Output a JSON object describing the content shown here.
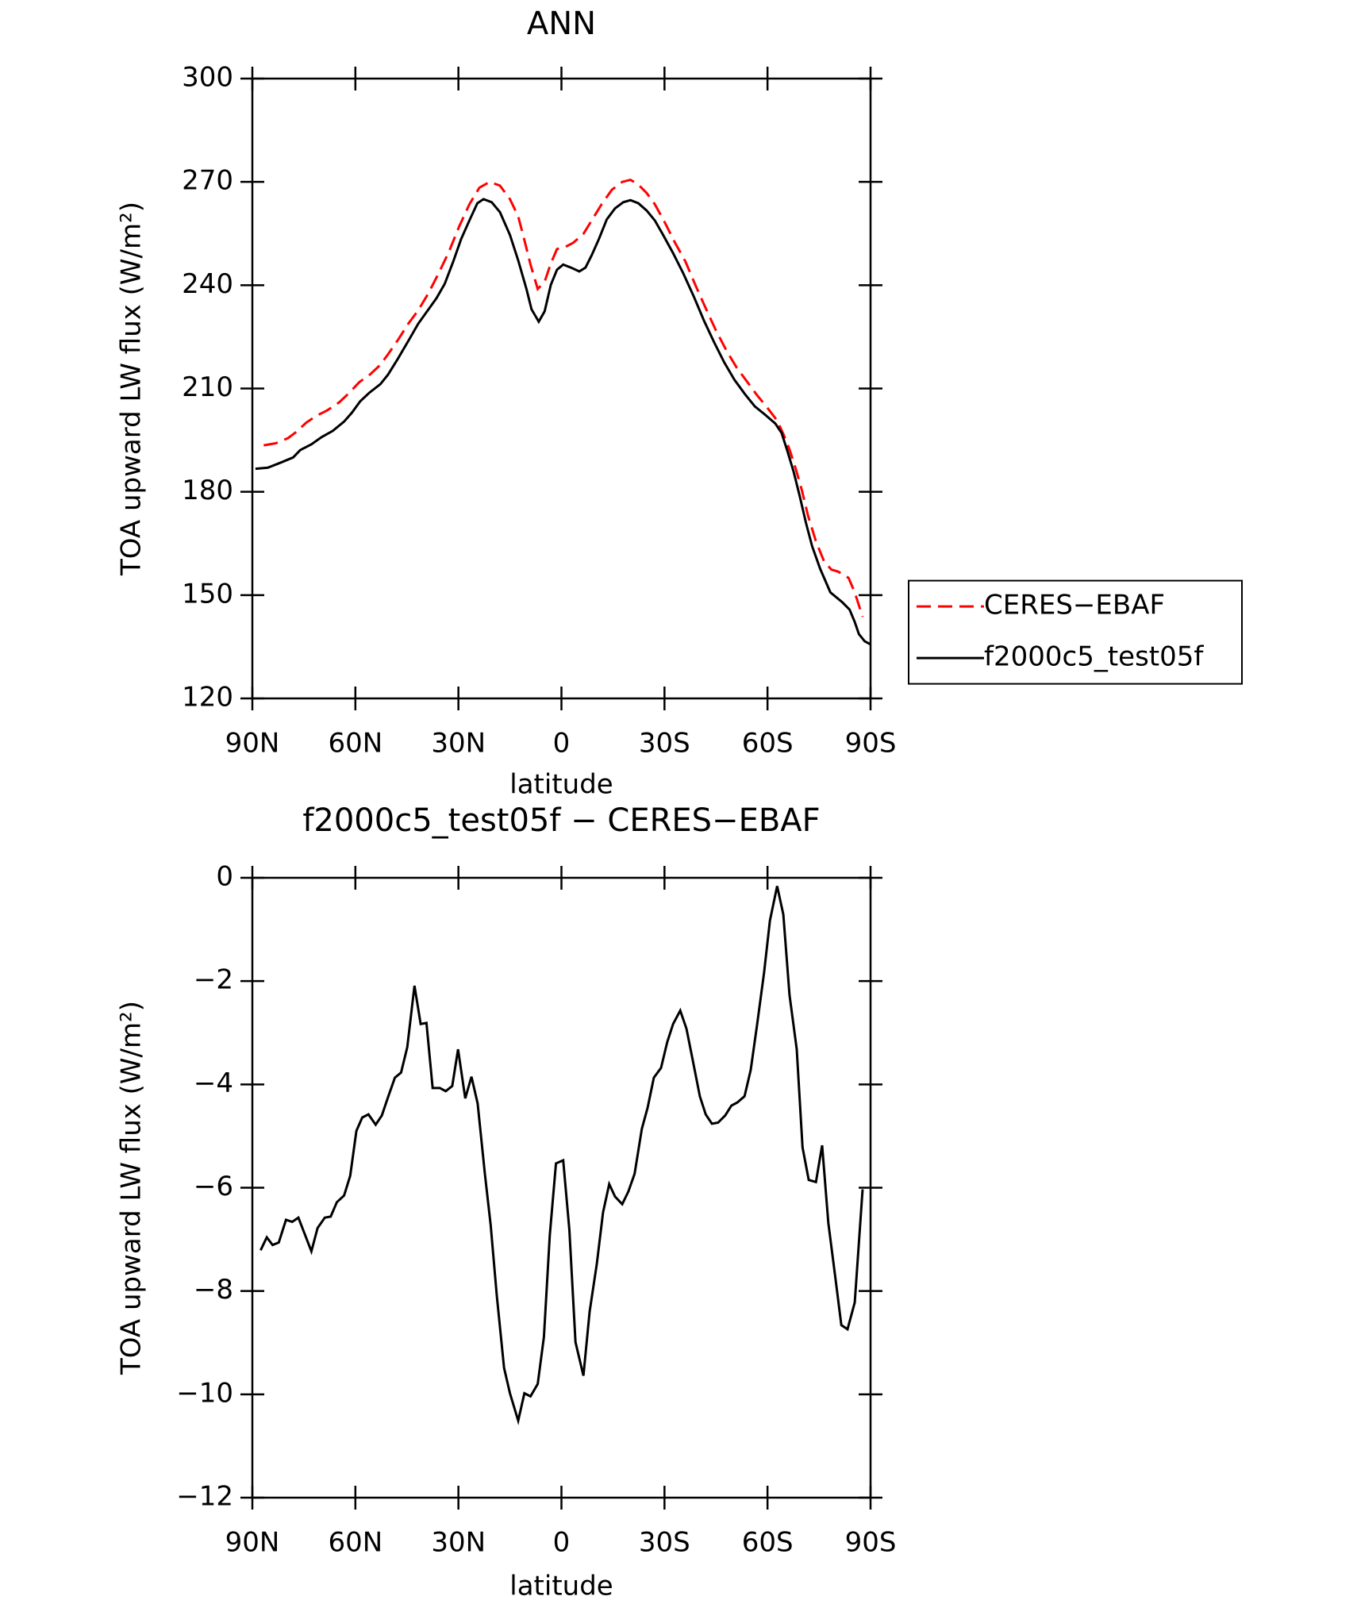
{
  "chart_data": [
    {
      "type": "line",
      "title": "ANN",
      "xlabel": "latitude",
      "ylabel": "TOA upward LW flux (W/m²)",
      "xlim": [
        90,
        -90
      ],
      "xticks": [
        {
          "value": 90,
          "label": "90N"
        },
        {
          "value": 60,
          "label": "60N"
        },
        {
          "value": 30,
          "label": "30N"
        },
        0,
        {
          "value": -30,
          "label": "30S"
        },
        {
          "value": -60,
          "label": "60S"
        },
        {
          "value": -90,
          "label": "90S"
        }
      ],
      "ylim": [
        120,
        300
      ],
      "yticks": [
        120,
        150,
        180,
        210,
        240,
        270,
        300
      ],
      "legend": "right",
      "series": [
        {
          "name": "CERES−EBAF",
          "color": "#ff0000",
          "dash": true,
          "x": [
            86.7,
            83.2,
            79.6,
            77.2,
            74.3,
            71.3,
            68.3,
            64.7,
            61.8,
            58.8,
            55.8,
            52.9,
            50.5,
            47.6,
            44.6,
            41.7,
            38.7,
            35.8,
            32.8,
            29.8,
            26.8,
            23.9,
            20.9,
            17.9,
            15.0,
            12.6,
            10.8,
            9.0,
            6.9,
            4.9,
            3.1,
            1.3,
            -1.1,
            -3.4,
            -6.4,
            -8.8,
            -11.7,
            -14.7,
            -17.7,
            -20.1,
            -22.4,
            -24.8,
            -27.2,
            -30.1,
            -33.1,
            -36.1,
            -39.1,
            -42.0,
            -45.0,
            -48.0,
            -51.0,
            -53.9,
            -56.9,
            -59.9,
            -62.8,
            -64.6,
            -66.4,
            -68.2,
            -70.0,
            -71.8,
            -74.1,
            -76.5,
            -78.6,
            -80.6,
            -83.6,
            -85.4,
            -87.7
          ],
          "values": [
            193.5,
            194.1,
            195.6,
            197.4,
            200.1,
            202.1,
            203.6,
            206.0,
            208.7,
            211.9,
            214.0,
            216.7,
            219.9,
            224.1,
            228.8,
            232.7,
            237.7,
            243.4,
            249.6,
            257.0,
            263.5,
            268.3,
            270.0,
            268.9,
            265.0,
            260.0,
            253.1,
            246.0,
            238.9,
            241.0,
            246.3,
            250.5,
            251.1,
            252.3,
            254.9,
            258.8,
            263.5,
            267.7,
            270.0,
            270.6,
            269.2,
            266.8,
            263.5,
            258.2,
            252.3,
            246.9,
            239.8,
            233.3,
            226.8,
            221.1,
            216.1,
            212.2,
            208.1,
            204.5,
            200.7,
            196.8,
            192.3,
            186.7,
            180.5,
            173.1,
            165.6,
            159.7,
            157.4,
            156.8,
            155.0,
            150.8,
            143.7
          ]
        },
        {
          "name": "f2000c5_test05f",
          "color": "#000000",
          "dash": false,
          "x": [
            89.1,
            85.5,
            81.7,
            78.1,
            76.1,
            72.8,
            69.8,
            66.6,
            63.3,
            61.0,
            58.6,
            56.0,
            52.7,
            50.5,
            47.6,
            44.6,
            41.7,
            38.7,
            36.4,
            34.0,
            31.6,
            29.2,
            26.8,
            24.5,
            22.7,
            20.3,
            17.9,
            15.0,
            12.6,
            10.2,
            8.7,
            6.6,
            4.9,
            3.1,
            1.3,
            -0.5,
            -2.8,
            -5.2,
            -7.0,
            -8.8,
            -10.9,
            -13.2,
            -15.6,
            -18.0,
            -20.1,
            -22.4,
            -24.8,
            -27.2,
            -29.6,
            -32.5,
            -35.5,
            -38.5,
            -41.5,
            -44.4,
            -47.4,
            -50.4,
            -53.4,
            -56.3,
            -59.3,
            -62.3,
            -64.1,
            -65.8,
            -67.6,
            -69.4,
            -71.2,
            -73.0,
            -75.3,
            -78.3,
            -81.8,
            -83.9,
            -85.4,
            -86.6,
            -88.3,
            -90.0
          ],
          "values": [
            186.7,
            187.0,
            188.5,
            190.0,
            192.1,
            193.8,
            195.9,
            197.7,
            200.4,
            203.0,
            206.3,
            208.7,
            211.3,
            214.0,
            218.7,
            223.8,
            228.8,
            233.0,
            236.2,
            240.4,
            246.6,
            253.4,
            258.8,
            263.8,
            265.0,
            264.1,
            261.2,
            254.6,
            247.2,
            238.9,
            233.0,
            229.4,
            232.4,
            240.1,
            244.5,
            246.0,
            245.1,
            244.0,
            245.1,
            248.7,
            253.4,
            259.1,
            262.3,
            264.1,
            264.7,
            263.8,
            261.7,
            258.8,
            254.6,
            249.3,
            243.4,
            236.8,
            229.7,
            223.5,
            217.6,
            212.5,
            208.4,
            204.8,
            202.4,
            199.8,
            197.1,
            191.8,
            185.8,
            178.7,
            171.0,
            164.2,
            157.7,
            150.8,
            147.9,
            145.8,
            142.2,
            138.7,
            136.6,
            135.7
          ]
        }
      ]
    },
    {
      "type": "line",
      "title": "f2000c5_test05f − CERES−EBAF",
      "xlabel": "latitude",
      "ylabel": "TOA upward LW flux (W/m²)",
      "xlim": [
        90,
        -90
      ],
      "xticks": [
        {
          "value": 90,
          "label": "90N"
        },
        {
          "value": 60,
          "label": "60N"
        },
        {
          "value": 30,
          "label": "30N"
        },
        0,
        {
          "value": -30,
          "label": "30S"
        },
        {
          "value": -60,
          "label": "60S"
        },
        {
          "value": -90,
          "label": "90S"
        }
      ],
      "ylim": [
        -12,
        0
      ],
      "yticks": [
        {
          "value": -12,
          "label": "−12"
        },
        {
          "value": -10,
          "label": "−10"
        },
        {
          "value": -8,
          "label": "−8"
        },
        {
          "value": -6,
          "label": "−6"
        },
        {
          "value": -4,
          "label": "−4"
        },
        {
          "value": -2,
          "label": "−2"
        },
        0
      ],
      "series": [
        {
          "color": "#000000",
          "dash": false,
          "x": [
            87.6,
            85.8,
            84.1,
            82.3,
            80.2,
            78.4,
            76.6,
            72.8,
            71.0,
            68.9,
            67.2,
            65.4,
            63.3,
            61.5,
            59.7,
            58.0,
            56.2,
            54.1,
            52.3,
            50.5,
            48.5,
            46.7,
            44.9,
            42.8,
            41.0,
            39.3,
            37.5,
            35.4,
            33.7,
            31.8,
            30.1,
            28.0,
            26.2,
            24.4,
            22.3,
            20.6,
            18.8,
            16.7,
            15.0,
            12.6,
            10.8,
            9.0,
            6.9,
            5.1,
            3.4,
            1.6,
            -0.5,
            -2.3,
            -4.1,
            -6.4,
            -8.2,
            -10.3,
            -12.1,
            -13.9,
            -15.6,
            -17.7,
            -19.5,
            -21.3,
            -23.4,
            -25.1,
            -26.9,
            -29.0,
            -30.8,
            -32.5,
            -34.6,
            -36.4,
            -38.2,
            -40.3,
            -42.0,
            -43.8,
            -45.6,
            -47.7,
            -49.5,
            -51.2,
            -53.3,
            -55.1,
            -56.9,
            -59.0,
            -60.7,
            -62.8,
            -64.6,
            -66.4,
            -68.5,
            -70.2,
            -72.0,
            -74.1,
            -75.9,
            -77.7,
            -79.7,
            -81.5,
            -83.3,
            -85.4,
            -87.7
          ],
          "values": [
            -7.21,
            -6.96,
            -7.11,
            -7.06,
            -6.62,
            -6.66,
            -6.58,
            -7.23,
            -6.78,
            -6.58,
            -6.56,
            -6.28,
            -6.15,
            -5.77,
            -4.9,
            -4.64,
            -4.58,
            -4.78,
            -4.6,
            -4.25,
            -3.87,
            -3.77,
            -3.28,
            -2.09,
            -2.83,
            -2.81,
            -4.07,
            -4.07,
            -4.13,
            -4.03,
            -3.32,
            -4.27,
            -3.85,
            -4.37,
            -5.73,
            -6.72,
            -8.1,
            -9.49,
            -9.98,
            -10.51,
            -9.98,
            -10.04,
            -9.8,
            -8.89,
            -6.92,
            -5.53,
            -5.47,
            -6.82,
            -8.99,
            -9.64,
            -8.4,
            -7.47,
            -6.48,
            -5.93,
            -6.17,
            -6.32,
            -6.07,
            -5.73,
            -4.86,
            -4.45,
            -3.87,
            -3.68,
            -3.18,
            -2.83,
            -2.57,
            -2.92,
            -3.52,
            -4.23,
            -4.58,
            -4.76,
            -4.74,
            -4.6,
            -4.41,
            -4.35,
            -4.23,
            -3.72,
            -2.87,
            -1.84,
            -0.83,
            -0.16,
            -0.71,
            -2.27,
            -3.32,
            -5.22,
            -5.85,
            -5.89,
            -5.18,
            -6.68,
            -7.71,
            -8.66,
            -8.74,
            -8.22,
            -6.03
          ]
        }
      ]
    }
  ]
}
